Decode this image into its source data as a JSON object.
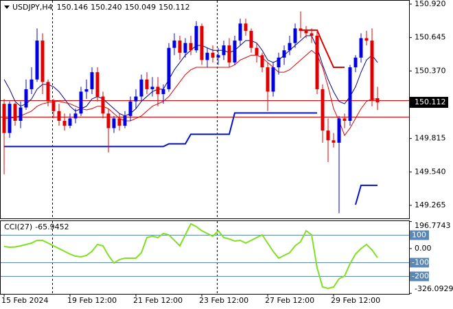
{
  "chart_data": [
    {
      "type": "candlestick",
      "title": "USDJPY,H4",
      "header_labels": [
        "150.146",
        "150.240",
        "150.049",
        "150.112"
      ],
      "categories": [
        "15 Feb 2024",
        null,
        null,
        null,
        null,
        null,
        null,
        null,
        null,
        null,
        null,
        null,
        "19 Feb 12:00",
        null,
        null,
        null,
        null,
        null,
        null,
        null,
        null,
        null,
        null,
        null,
        "21 Feb 12:00",
        null,
        null,
        null,
        null,
        null,
        null,
        null,
        null,
        null,
        null,
        null,
        "23 Feb 12:00",
        null,
        null,
        null,
        null,
        null,
        null,
        null,
        null,
        null,
        null,
        null,
        "27 Feb 12:00",
        null,
        null,
        null,
        null,
        null,
        null,
        null,
        null,
        null,
        null,
        null,
        "29 Feb 12:00",
        null,
        null,
        null,
        null,
        null,
        null,
        null,
        null
      ],
      "open": [
        150.1,
        149.86,
        150.1,
        149.96,
        150.07,
        150.22,
        150.3,
        150.62,
        150.28,
        150.12,
        150.04,
        149.96,
        149.92,
        149.98,
        150.02,
        150.2,
        150.22,
        150.36,
        150.16,
        150.02,
        149.9,
        149.98,
        149.92,
        150.0,
        150.12,
        150.16,
        150.3,
        150.22,
        150.24,
        150.18,
        150.22,
        150.56,
        150.62,
        150.52,
        150.6,
        150.54,
        150.74,
        150.46,
        150.52,
        150.48,
        150.5,
        150.58,
        150.44,
        150.62,
        150.76,
        150.7,
        150.56,
        150.5,
        150.4,
        150.2,
        150.4,
        150.48,
        150.54,
        150.6,
        150.72,
        150.7,
        150.68,
        150.66,
        150.22,
        149.88,
        149.8,
        149.78,
        149.98,
        149.96,
        150.4,
        150.48,
        150.64,
        150.62,
        150.146
      ],
      "high": [
        150.14,
        150.12,
        150.11,
        150.12,
        150.3,
        150.4,
        150.72,
        150.68,
        150.3,
        150.14,
        150.1,
        150.02,
        150.02,
        150.06,
        150.24,
        150.3,
        150.4,
        150.4,
        150.2,
        150.06,
        150.0,
        150.02,
        150.04,
        150.16,
        150.22,
        150.34,
        150.36,
        150.32,
        150.32,
        150.26,
        150.6,
        150.68,
        150.66,
        150.64,
        150.66,
        150.78,
        150.76,
        150.56,
        150.58,
        150.56,
        150.62,
        150.64,
        150.66,
        150.8,
        150.8,
        150.72,
        150.6,
        150.52,
        150.44,
        150.44,
        150.52,
        150.58,
        150.66,
        150.76,
        150.86,
        150.74,
        150.72,
        150.7,
        150.26,
        149.98,
        149.86,
        150.0,
        150.02,
        150.42,
        150.5,
        150.68,
        150.7,
        150.72,
        150.24
      ],
      "low": [
        149.52,
        149.82,
        149.92,
        149.9,
        150.05,
        150.18,
        150.28,
        150.18,
        150.08,
        149.98,
        149.92,
        149.88,
        149.9,
        149.94,
        150.0,
        150.14,
        150.18,
        150.12,
        149.98,
        149.7,
        149.86,
        149.88,
        149.9,
        149.96,
        150.06,
        150.12,
        150.18,
        150.16,
        150.08,
        150.1,
        150.2,
        150.5,
        150.46,
        150.48,
        150.5,
        150.52,
        150.42,
        150.4,
        150.44,
        150.42,
        150.46,
        150.4,
        150.42,
        150.58,
        150.66,
        150.52,
        150.44,
        150.36,
        150.04,
        150.16,
        150.34,
        150.42,
        150.5,
        150.56,
        150.64,
        150.64,
        150.6,
        150.18,
        149.78,
        149.62,
        149.74,
        149.2,
        149.9,
        149.92,
        150.36,
        150.44,
        150.58,
        150.08,
        150.049
      ],
      "close": [
        149.86,
        150.1,
        149.96,
        150.07,
        150.22,
        150.3,
        150.62,
        150.28,
        150.12,
        150.04,
        149.96,
        149.92,
        149.98,
        150.02,
        150.2,
        150.22,
        150.36,
        150.16,
        150.02,
        149.9,
        149.98,
        149.92,
        150.0,
        150.12,
        150.16,
        150.3,
        150.22,
        150.24,
        150.18,
        150.22,
        150.56,
        150.62,
        150.52,
        150.6,
        150.54,
        150.74,
        150.46,
        150.52,
        150.48,
        150.5,
        150.58,
        150.44,
        150.62,
        150.76,
        150.7,
        150.56,
        150.5,
        150.4,
        150.2,
        150.4,
        150.48,
        150.54,
        150.6,
        150.72,
        150.7,
        150.68,
        150.66,
        150.22,
        149.88,
        149.8,
        149.78,
        149.98,
        149.96,
        150.4,
        150.48,
        150.64,
        150.62,
        150.13,
        150.112
      ],
      "up_color": "#0000e0",
      "down_color": "#e00000",
      "series": [
        {
          "color": "#000080",
          "width": 1,
          "values": [
            150.3,
            150.22,
            150.12,
            150.08,
            150.1,
            150.14,
            150.22,
            150.26,
            150.26,
            150.24,
            150.2,
            150.14,
            150.08,
            150.04,
            150.06,
            150.08,
            150.14,
            150.16,
            150.14,
            150.1,
            150.06,
            150.02,
            150.0,
            150.02,
            150.06,
            150.12,
            150.16,
            150.2,
            150.22,
            150.22,
            150.3,
            150.38,
            150.44,
            150.5,
            150.54,
            150.58,
            150.58,
            150.56,
            150.54,
            150.54,
            150.54,
            150.52,
            150.54,
            150.58,
            150.62,
            150.62,
            150.6,
            150.54,
            150.46,
            150.44,
            150.46,
            150.5,
            150.54,
            150.58,
            150.62,
            150.66,
            150.66,
            150.56,
            150.42,
            150.3,
            150.2,
            150.12,
            150.1,
            150.16,
            150.24,
            150.36,
            150.46,
            150.5,
            150.44
          ]
        },
        {
          "color": "#e00000",
          "width": 1,
          "values": [
            149.98,
            149.98,
            149.99,
            150.0,
            150.02,
            150.04,
            150.08,
            150.1,
            150.11,
            150.12,
            150.12,
            150.11,
            150.1,
            150.08,
            150.06,
            150.05,
            150.06,
            150.08,
            150.08,
            150.06,
            150.02,
            149.98,
            149.96,
            149.96,
            149.98,
            150.0,
            150.04,
            150.08,
            150.1,
            150.12,
            150.16,
            150.22,
            150.28,
            150.34,
            150.38,
            150.4,
            150.4,
            150.4,
            150.4,
            150.4,
            150.4,
            150.4,
            150.42,
            150.46,
            150.48,
            150.5,
            150.5,
            150.48,
            150.44,
            150.4,
            150.36,
            150.36,
            150.38,
            150.42,
            150.46,
            150.5,
            150.54,
            150.5,
            150.4,
            150.24,
            150.06,
            149.96,
            149.84,
            149.9,
            149.98,
            150.06,
            150.12,
            150.14,
            150.14
          ]
        },
        {
          "color": "#0010c8",
          "width": 2,
          "values": [
            149.749,
            149.749,
            149.749,
            149.749,
            149.749,
            149.749,
            149.749,
            149.749,
            149.749,
            149.749,
            149.749,
            149.749,
            149.749,
            149.749,
            149.749,
            149.749,
            149.749,
            149.749,
            149.749,
            149.749,
            149.749,
            149.749,
            149.749,
            149.749,
            149.749,
            149.749,
            149.749,
            149.749,
            149.749,
            149.749,
            149.771,
            149.771,
            149.771,
            149.771,
            149.85,
            149.85,
            149.85,
            149.85,
            149.85,
            149.85,
            149.85,
            149.85,
            150.025,
            150.025,
            150.025,
            150.025,
            150.025,
            150.025,
            150.025,
            150.025,
            150.025,
            150.025,
            150.025,
            150.025,
            150.025,
            150.025,
            150.025,
            150.025,
            null,
            null,
            null,
            null,
            null,
            null,
            149.27,
            149.43,
            149.43,
            149.43,
            149.43
          ]
        },
        {
          "color": "#e00000",
          "width": 2,
          "values": [
            null,
            null,
            null,
            null,
            null,
            null,
            null,
            null,
            null,
            null,
            null,
            null,
            null,
            null,
            null,
            null,
            null,
            null,
            null,
            null,
            null,
            null,
            null,
            null,
            null,
            null,
            null,
            null,
            null,
            null,
            null,
            null,
            null,
            null,
            null,
            null,
            null,
            null,
            null,
            null,
            null,
            null,
            null,
            null,
            null,
            null,
            null,
            null,
            null,
            null,
            null,
            null,
            null,
            null,
            150.706,
            150.706,
            150.706,
            150.706,
            150.6,
            150.5,
            150.4,
            150.4,
            150.4,
            null,
            null,
            null,
            null,
            null,
            null
          ]
        }
      ],
      "price_lines": [
        {
          "value": 150.13,
          "color": "#e00000"
        },
        {
          "value": 149.996,
          "color": "#e00000"
        }
      ],
      "last_price": {
        "value": 150.112,
        "label": "150.112"
      },
      "ylim": [
        149.158,
        150.948
      ],
      "yticks": [
        {
          "value": 150.92,
          "label": "150.920"
        },
        {
          "value": 150.645,
          "label": "150.645"
        },
        {
          "value": 150.37,
          "label": "150.370"
        },
        {
          "value": 149.815,
          "label": "149.815"
        },
        {
          "value": 149.54,
          "label": "149.540"
        },
        {
          "value": 149.265,
          "label": "149.265"
        }
      ]
    },
    {
      "type": "line",
      "title": "CCI(27)",
      "color": "#7fe020",
      "values": [
        15,
        10,
        12,
        20,
        30,
        40,
        60,
        60,
        40,
        20,
        0,
        -20,
        -40,
        -55,
        -60,
        -50,
        -20,
        30,
        20,
        -50,
        -105,
        -80,
        -70,
        -70,
        -70,
        -30,
        80,
        90,
        80,
        110,
        100,
        60,
        20,
        100,
        180,
        160,
        130,
        110,
        90,
        130,
        80,
        70,
        55,
        60,
        40,
        60,
        80,
        100,
        40,
        -20,
        -70,
        -50,
        -30,
        20,
        50,
        130,
        100,
        -140,
        -280,
        -290,
        -280,
        -220,
        -200,
        -110,
        -40,
        0,
        30,
        -10,
        -65.9452
      ],
      "ylim": [
        -330,
        200
      ],
      "yticks": [
        196.7743,
        {
          "value": 0,
          "label": "0.00"
        },
        -326.0929
      ],
      "levels": [
        100,
        -100,
        -200
      ],
      "level_color": "#5b87b5"
    }
  ]
}
